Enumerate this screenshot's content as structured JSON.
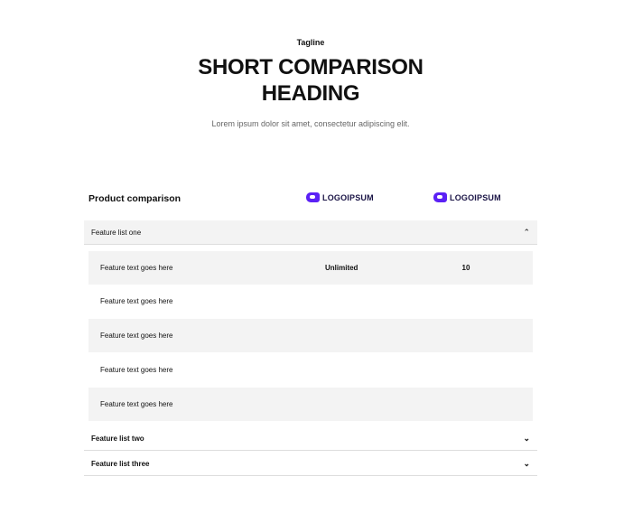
{
  "header": {
    "tagline": "Tagline",
    "heading_line1": "SHORT COMPARISON",
    "heading_line2": "HEADING",
    "subtitle": "Lorem ipsum dolor sit amet, consectetur adipiscing elit."
  },
  "table": {
    "title": "Product comparison",
    "logos": [
      "LOGOIPSUM",
      "LOGOIPSUM"
    ],
    "brand_color": "#5b21f5",
    "groups": [
      {
        "label": "Feature list one",
        "expanded": true,
        "icon": "chevron-up-icon",
        "rows": [
          {
            "feature": "Feature text goes here",
            "v1": "Unlimited",
            "v2": "10"
          },
          {
            "feature": "Feature text goes here",
            "v1": "",
            "v2": ""
          },
          {
            "feature": "Feature text goes here",
            "v1": "",
            "v2": ""
          },
          {
            "feature": "Feature text goes here",
            "v1": "",
            "v2": ""
          },
          {
            "feature": "Feature text goes here",
            "v1": "",
            "v2": ""
          }
        ]
      },
      {
        "label": "Feature list two",
        "expanded": false,
        "icon": "chevron-down-icon"
      },
      {
        "label": "Feature list three",
        "expanded": false,
        "icon": "chevron-down-icon"
      }
    ]
  }
}
